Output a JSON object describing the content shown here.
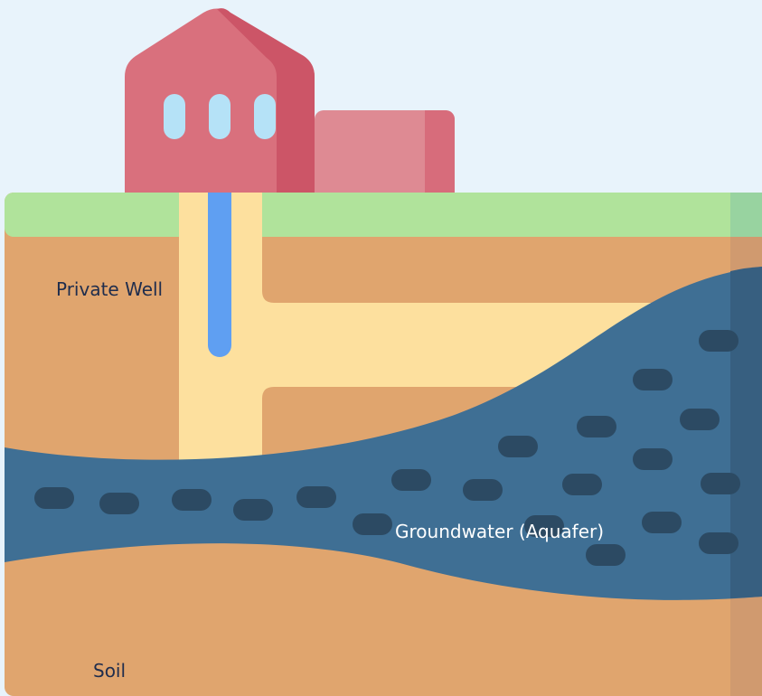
{
  "labels": {
    "well": "Private Well",
    "aquifer": "Groundwater (Aquafer)",
    "soil": "Soil"
  }
}
